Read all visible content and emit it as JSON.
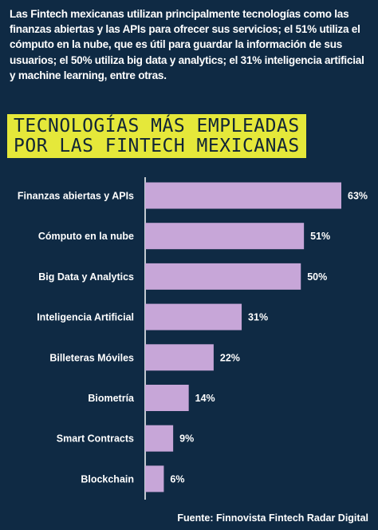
{
  "intro": "Las Fintech mexicanas utilizan principalmente tecnologías como las finanzas abiertas y las APIs para ofrecer sus servicios; el 51% utiliza el cómputo en la nube, que es útil para guardar la información de sus usuarios; el 50% utiliza big data y analytics; el 31% inteligencia artificial y machine learning, entre otras.",
  "title": {
    "line1": "TECNOLOGÍAS MÁS EMPLEADAS",
    "line2": "POR LAS FINTECH MEXICANAS"
  },
  "source": "Fuente: Finnovista Fintech Radar Digital",
  "colors": {
    "background": "#0f2a44",
    "bar": "#c7a6d8",
    "title_bg": "#e5e83a",
    "axis": "#ffffff"
  },
  "chart_data": {
    "type": "bar",
    "orientation": "horizontal",
    "categories": [
      "Finanzas abiertas y APIs",
      "Cómputo en la nube",
      "Big Data y Analytics",
      "Inteligencia Artificial",
      "Billeteras Móviles",
      "Biometría",
      "Smart Contracts",
      "Blockchain"
    ],
    "values": [
      63,
      51,
      50,
      31,
      22,
      14,
      9,
      6
    ],
    "value_labels": [
      "63%",
      "51%",
      "50%",
      "31%",
      "22%",
      "14%",
      "9%",
      "6%"
    ],
    "xlim": [
      0,
      63
    ],
    "grid": false
  }
}
